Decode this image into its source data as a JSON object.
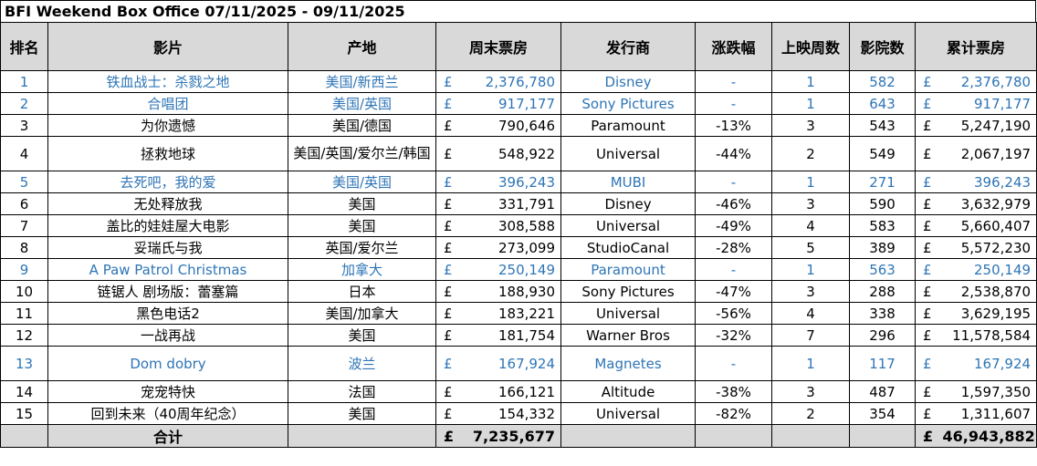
{
  "title": "BFI Weekend Box Office 07/11/2025 - 09/11/2025",
  "headers": {
    "rank": "排名",
    "film": "影片",
    "origin": "产地",
    "weekend": "周末票房",
    "distributor": "发行商",
    "change": "涨跌幅",
    "weeks": "上映周数",
    "cinemas": "影院数",
    "total": "累计票房"
  },
  "currency": "£",
  "rows": [
    {
      "rank": "1",
      "film": "铁血战士：杀戮之地",
      "origin": "美国/新西兰",
      "weekend": "2,376,780",
      "distributor": "Disney",
      "change": "-",
      "weeks": "1",
      "cinemas": "582",
      "total": "2,376,780",
      "new": true
    },
    {
      "rank": "2",
      "film": "合唱团",
      "origin": "美国/英国",
      "weekend": "917,177",
      "distributor": "Sony Pictures",
      "change": "-",
      "weeks": "1",
      "cinemas": "643",
      "total": "917,177",
      "new": true
    },
    {
      "rank": "3",
      "film": "为你遗憾",
      "origin": "美国/德国",
      "weekend": "790,646",
      "distributor": "Paramount",
      "change": "-13%",
      "weeks": "3",
      "cinemas": "543",
      "total": "5,247,190",
      "new": false
    },
    {
      "rank": "4",
      "film": "拯救地球",
      "origin": "美国/英国/爱尔兰/韩国",
      "weekend": "548,922",
      "distributor": "Universal",
      "change": "-44%",
      "weeks": "2",
      "cinemas": "549",
      "total": "2,067,197",
      "new": false
    },
    {
      "rank": "5",
      "film": "去死吧，我的爱",
      "origin": "美国/英国",
      "weekend": "396,243",
      "distributor": "MUBI",
      "change": "-",
      "weeks": "1",
      "cinemas": "271",
      "total": "396,243",
      "new": true
    },
    {
      "rank": "6",
      "film": "无处释放我",
      "origin": "美国",
      "weekend": "331,791",
      "distributor": "Disney",
      "change": "-46%",
      "weeks": "3",
      "cinemas": "590",
      "total": "3,632,979",
      "new": false
    },
    {
      "rank": "7",
      "film": "盖比的娃娃屋大电影",
      "origin": "美国",
      "weekend": "308,588",
      "distributor": "Universal",
      "change": "-49%",
      "weeks": "4",
      "cinemas": "583",
      "total": "5,660,407",
      "new": false
    },
    {
      "rank": "8",
      "film": "妥瑞氏与我",
      "origin": "英国/爱尔兰",
      "weekend": "273,099",
      "distributor": "StudioCanal",
      "change": "-28%",
      "weeks": "5",
      "cinemas": "389",
      "total": "5,572,230",
      "new": false
    },
    {
      "rank": "9",
      "film": "A Paw Patrol Christmas",
      "origin": "加拿大",
      "weekend": "250,149",
      "distributor": "Paramount",
      "change": "-",
      "weeks": "1",
      "cinemas": "563",
      "total": "250,149",
      "new": true
    },
    {
      "rank": "10",
      "film": "链锯人 剧场版：蕾塞篇",
      "origin": "日本",
      "weekend": "188,930",
      "distributor": "Sony Pictures",
      "change": "-47%",
      "weeks": "3",
      "cinemas": "288",
      "total": "2,538,870",
      "new": false
    },
    {
      "rank": "11",
      "film": "黑色电话2",
      "origin": "美国/加拿大",
      "weekend": "183,221",
      "distributor": "Universal",
      "change": "-56%",
      "weeks": "4",
      "cinemas": "338",
      "total": "3,629,195",
      "new": false
    },
    {
      "rank": "12",
      "film": "一战再战",
      "origin": "美国",
      "weekend": "181,754",
      "distributor": "Warner Bros",
      "change": "-32%",
      "weeks": "7",
      "cinemas": "296",
      "total": "11,578,584",
      "new": false
    },
    {
      "rank": "13",
      "film": "Dom dobry",
      "origin": "波兰",
      "weekend": "167,924",
      "distributor": "Magnetes",
      "change": "-",
      "weeks": "1",
      "cinemas": "117",
      "total": "167,924",
      "new": true
    },
    {
      "rank": "14",
      "film": "宠宠特快",
      "origin": "法国",
      "weekend": "166,121",
      "distributor": "Altitude",
      "change": "-38%",
      "weeks": "3",
      "cinemas": "487",
      "total": "1,597,350",
      "new": false
    },
    {
      "rank": "15",
      "film": "回到未来（40周年纪念）",
      "origin": "美国",
      "weekend": "154,332",
      "distributor": "Universal",
      "change": "-82%",
      "weeks": "2",
      "cinemas": "354",
      "total": "1,311,607",
      "new": false
    }
  ],
  "total_row": {
    "label": "合计",
    "weekend": "7,235,677",
    "total": "46,943,882"
  }
}
